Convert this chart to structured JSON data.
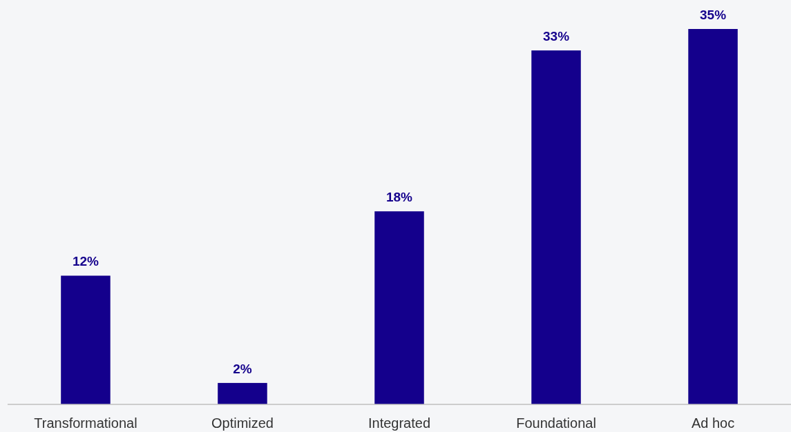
{
  "chart_data": {
    "type": "bar",
    "categories": [
      "Transformational",
      "Optimized",
      "Integrated",
      "Foundational",
      "Ad hoc"
    ],
    "values": [
      12,
      2,
      18,
      33,
      35
    ],
    "value_labels": [
      "12%",
      "2%",
      "18%",
      "33%",
      "35%"
    ],
    "color": "#14008c"
  }
}
